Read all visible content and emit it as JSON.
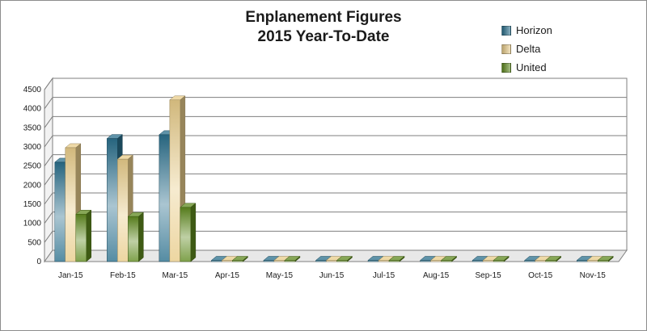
{
  "chart_data": {
    "type": "bar",
    "title_lines": [
      "Enplanement Figures",
      "2015 Year-To-Date"
    ],
    "categories": [
      "Jan-15",
      "Feb-15",
      "Mar-15",
      "Apr-15",
      "May-15",
      "Jun-15",
      "Jul-15",
      "Aug-15",
      "Sep-15",
      "Oct-15",
      "Nov-15"
    ],
    "series": [
      {
        "name": "Horizon",
        "color": "#2a6f8c",
        "values": [
          2600,
          3220,
          3320,
          0,
          0,
          0,
          0,
          0,
          0,
          0,
          0
        ]
      },
      {
        "name": "Delta",
        "color": "#e8cc8a",
        "values": [
          2980,
          2680,
          4230,
          0,
          0,
          0,
          0,
          0,
          0,
          0,
          0
        ]
      },
      {
        "name": "United",
        "color": "#5f8a1f",
        "values": [
          1240,
          1180,
          1420,
          0,
          0,
          0,
          0,
          0,
          0,
          0,
          0
        ]
      }
    ],
    "ylim": [
      0,
      4500
    ],
    "yticks": [
      0,
      500,
      1000,
      1500,
      2000,
      2500,
      3000,
      3500,
      4000,
      4500
    ],
    "xlabel": "",
    "ylabel": "",
    "grid": true,
    "legend_position": "top-right",
    "style": "3d-clustered-column"
  }
}
